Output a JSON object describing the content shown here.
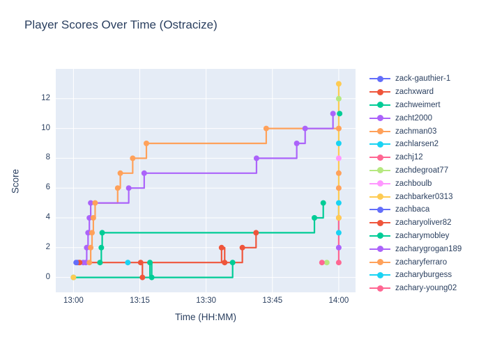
{
  "title": "Player Scores Over Time (Ostracize)",
  "colors": {
    "text": "#2a3f5f",
    "plot_background": "#e5ecf6",
    "gridline": "#ffffff",
    "page_background": "#ffffff"
  },
  "chart_data": {
    "type": "line",
    "title": "Player Scores Over Time (Ostracize)",
    "xlabel": "Time (HH:MM)",
    "ylabel": "Score",
    "x_tick_labels": [
      "13:00",
      "13:15",
      "13:30",
      "13:45",
      "14:00"
    ],
    "x_tick_minutes": [
      0,
      15,
      30,
      45,
      60
    ],
    "y_ticks": [
      0,
      2,
      4,
      6,
      8,
      10,
      12
    ],
    "x_range_minutes": [
      -4,
      63.8
    ],
    "y_range": [
      -1,
      14
    ],
    "t_unit": "minutes_after_13:00",
    "grid": true,
    "legend_position": "right",
    "line_shape": "hv_step_with_markers",
    "series": [
      {
        "name": "zack-gauthier-1",
        "color": "#636efa",
        "segments": [
          [
            [
              0.6,
              1
            ]
          ]
        ]
      },
      {
        "name": "zachxward",
        "color": "#ef553b",
        "segments": [
          [
            [
              1.4,
              1
            ],
            [
              33.5,
              2
            ],
            [
              34.2,
              1
            ],
            [
              38.2,
              2
            ],
            [
              41.3,
              3
            ]
          ]
        ]
      },
      {
        "name": "zachweimert",
        "color": "#00cc96",
        "segments": [
          [
            [
              6,
              1
            ],
            [
              6.3,
              2
            ],
            [
              6.5,
              3
            ],
            [
              54.5,
              4
            ],
            [
              56.5,
              5
            ]
          ],
          [
            [
              60.2,
              11
            ]
          ]
        ]
      },
      {
        "name": "zacht2000",
        "color": "#ab63fa",
        "segments": [
          [
            [
              2.2,
              1
            ]
          ],
          [
            [
              60,
              2
            ]
          ]
        ]
      },
      {
        "name": "zachman03",
        "color": "#ffa15a",
        "segments": [
          [
            [
              3.6,
              1
            ],
            [
              3.9,
              2
            ],
            [
              4.2,
              3
            ],
            [
              4.5,
              4
            ],
            [
              4.9,
              5
            ],
            [
              10,
              6
            ],
            [
              10.6,
              7
            ],
            [
              13.4,
              8
            ],
            [
              16.5,
              9
            ],
            [
              43.6,
              10
            ],
            [
              60,
              10
            ]
          ]
        ]
      },
      {
        "name": "zachlarsen2",
        "color": "#19d3f3",
        "segments": [
          [
            [
              12.3,
              1
            ]
          ],
          [
            [
              60,
              3
            ],
            [
              60,
              5
            ]
          ]
        ]
      },
      {
        "name": "zachj12",
        "color": "#ff6692",
        "segments": [
          [
            [
              56.2,
              1
            ]
          ]
        ]
      },
      {
        "name": "zachdegroat77",
        "color": "#b6e880",
        "segments": [
          [
            [
              57.3,
              1
            ]
          ],
          [
            [
              60,
              12
            ]
          ]
        ]
      },
      {
        "name": "zachboulb",
        "color": "#ff97ff",
        "segments": [
          [
            [
              60,
              8
            ]
          ]
        ]
      },
      {
        "name": "zachbarker0313",
        "color": "#fecb52",
        "segments": [
          [
            [
              0,
              0
            ]
          ],
          [
            [
              60,
              4
            ],
            [
              60,
              10
            ],
            [
              60,
              13
            ]
          ]
        ]
      },
      {
        "name": "zachbaca",
        "color": "#636efa",
        "segments": [
          [
            [
              1.0,
              1
            ]
          ]
        ]
      },
      {
        "name": "zacharyoliver82",
        "color": "#ef553b",
        "segments": [
          [
            [
              15.2,
              1
            ],
            [
              15.6,
              0
            ]
          ]
        ]
      },
      {
        "name": "zacharymobley",
        "color": "#00cc96",
        "segments": [
          [
            [
              0,
              0
            ],
            [
              17.3,
              1
            ],
            [
              17.7,
              0
            ],
            [
              36,
              1
            ]
          ]
        ]
      },
      {
        "name": "zacharygrogan189",
        "color": "#ab63fa",
        "segments": [
          [
            [
              2.8,
              1
            ],
            [
              3.0,
              2
            ],
            [
              3.3,
              3
            ],
            [
              3.6,
              4
            ],
            [
              3.9,
              5
            ],
            [
              12.5,
              6
            ],
            [
              16,
              7
            ],
            [
              41.4,
              8
            ],
            [
              50.5,
              9
            ],
            [
              52.4,
              10
            ],
            [
              58.7,
              11
            ]
          ]
        ]
      },
      {
        "name": "zacharyferraro",
        "color": "#ffa15a",
        "segments": [
          [
            [
              60,
              6
            ]
          ],
          [
            [
              60,
              7
            ]
          ]
        ]
      },
      {
        "name": "zacharyburgess",
        "color": "#19d3f3",
        "segments": [
          [
            [
              60,
              9
            ]
          ]
        ]
      },
      {
        "name": "zachary-young02",
        "color": "#ff6692",
        "segments": [
          [
            [
              60,
              1
            ],
            [
              60,
              4
            ]
          ]
        ]
      }
    ]
  }
}
